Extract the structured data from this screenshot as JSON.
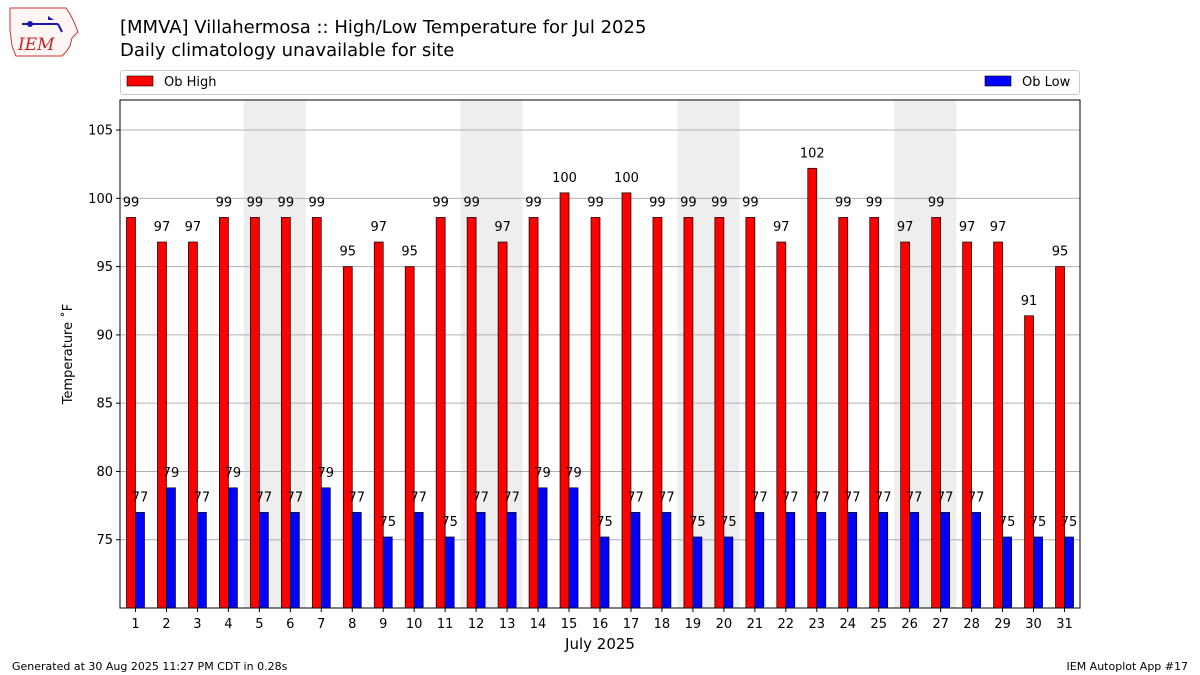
{
  "header": {
    "title_line1": "[MMVA] Villahermosa :: High/Low Temperature for Jul 2025",
    "title_line2": "Daily climatology unavailable for site"
  },
  "logo": {
    "text": "IEM"
  },
  "footer": {
    "left": "Generated at 30 Aug 2025 11:27 PM CDT in 0.28s",
    "right": "IEM Autoplot App #17"
  },
  "chart_data": {
    "type": "bar",
    "xlabel": "July 2025",
    "ylabel": "Temperature ˚F",
    "ylim": [
      70,
      107.2
    ],
    "yticks": [
      75,
      80,
      85,
      90,
      95,
      100,
      105
    ],
    "grid": true,
    "legend_placement": "top",
    "weekend_days_shaded": [
      5,
      6,
      12,
      13,
      19,
      20,
      26,
      27
    ],
    "categories": [
      "1",
      "2",
      "3",
      "4",
      "5",
      "6",
      "7",
      "8",
      "9",
      "10",
      "11",
      "12",
      "13",
      "14",
      "15",
      "16",
      "17",
      "18",
      "19",
      "20",
      "21",
      "22",
      "23",
      "24",
      "25",
      "26",
      "27",
      "28",
      "29",
      "30",
      "31"
    ],
    "series": [
      {
        "name": "Ob High",
        "color": "#ff0000",
        "values": [
          98.6,
          96.8,
          96.8,
          98.6,
          98.6,
          98.6,
          98.6,
          95.0,
          96.8,
          95.0,
          98.6,
          98.6,
          96.8,
          98.6,
          100.4,
          98.6,
          100.4,
          98.6,
          98.6,
          98.6,
          98.6,
          96.8,
          102.2,
          98.6,
          98.6,
          96.8,
          98.6,
          96.8,
          96.8,
          91.4,
          95.0
        ],
        "labels": [
          "99",
          "97",
          "97",
          "99",
          "99",
          "99",
          "99",
          "95",
          "97",
          "95",
          "99",
          "99",
          "97",
          "99",
          "100",
          "99",
          "100",
          "99",
          "99",
          "99",
          "99",
          "97",
          "102",
          "99",
          "99",
          "97",
          "99",
          "97",
          "97",
          "91",
          "95"
        ]
      },
      {
        "name": "Ob Low",
        "color": "#0000ff",
        "values": [
          77.0,
          78.8,
          77.0,
          78.8,
          77.0,
          77.0,
          78.8,
          77.0,
          75.2,
          77.0,
          75.2,
          77.0,
          77.0,
          78.8,
          78.8,
          75.2,
          77.0,
          77.0,
          75.2,
          75.2,
          77.0,
          77.0,
          77.0,
          77.0,
          77.0,
          77.0,
          77.0,
          77.0,
          75.2,
          75.2,
          75.2
        ],
        "labels": [
          "77",
          "79",
          "77",
          "79",
          "77",
          "77",
          "79",
          "77",
          "75",
          "77",
          "75",
          "77",
          "77",
          "79",
          "79",
          "75",
          "77",
          "77",
          "75",
          "75",
          "77",
          "77",
          "77",
          "77",
          "77",
          "77",
          "77",
          "77",
          "75",
          "75",
          "75"
        ]
      }
    ]
  }
}
